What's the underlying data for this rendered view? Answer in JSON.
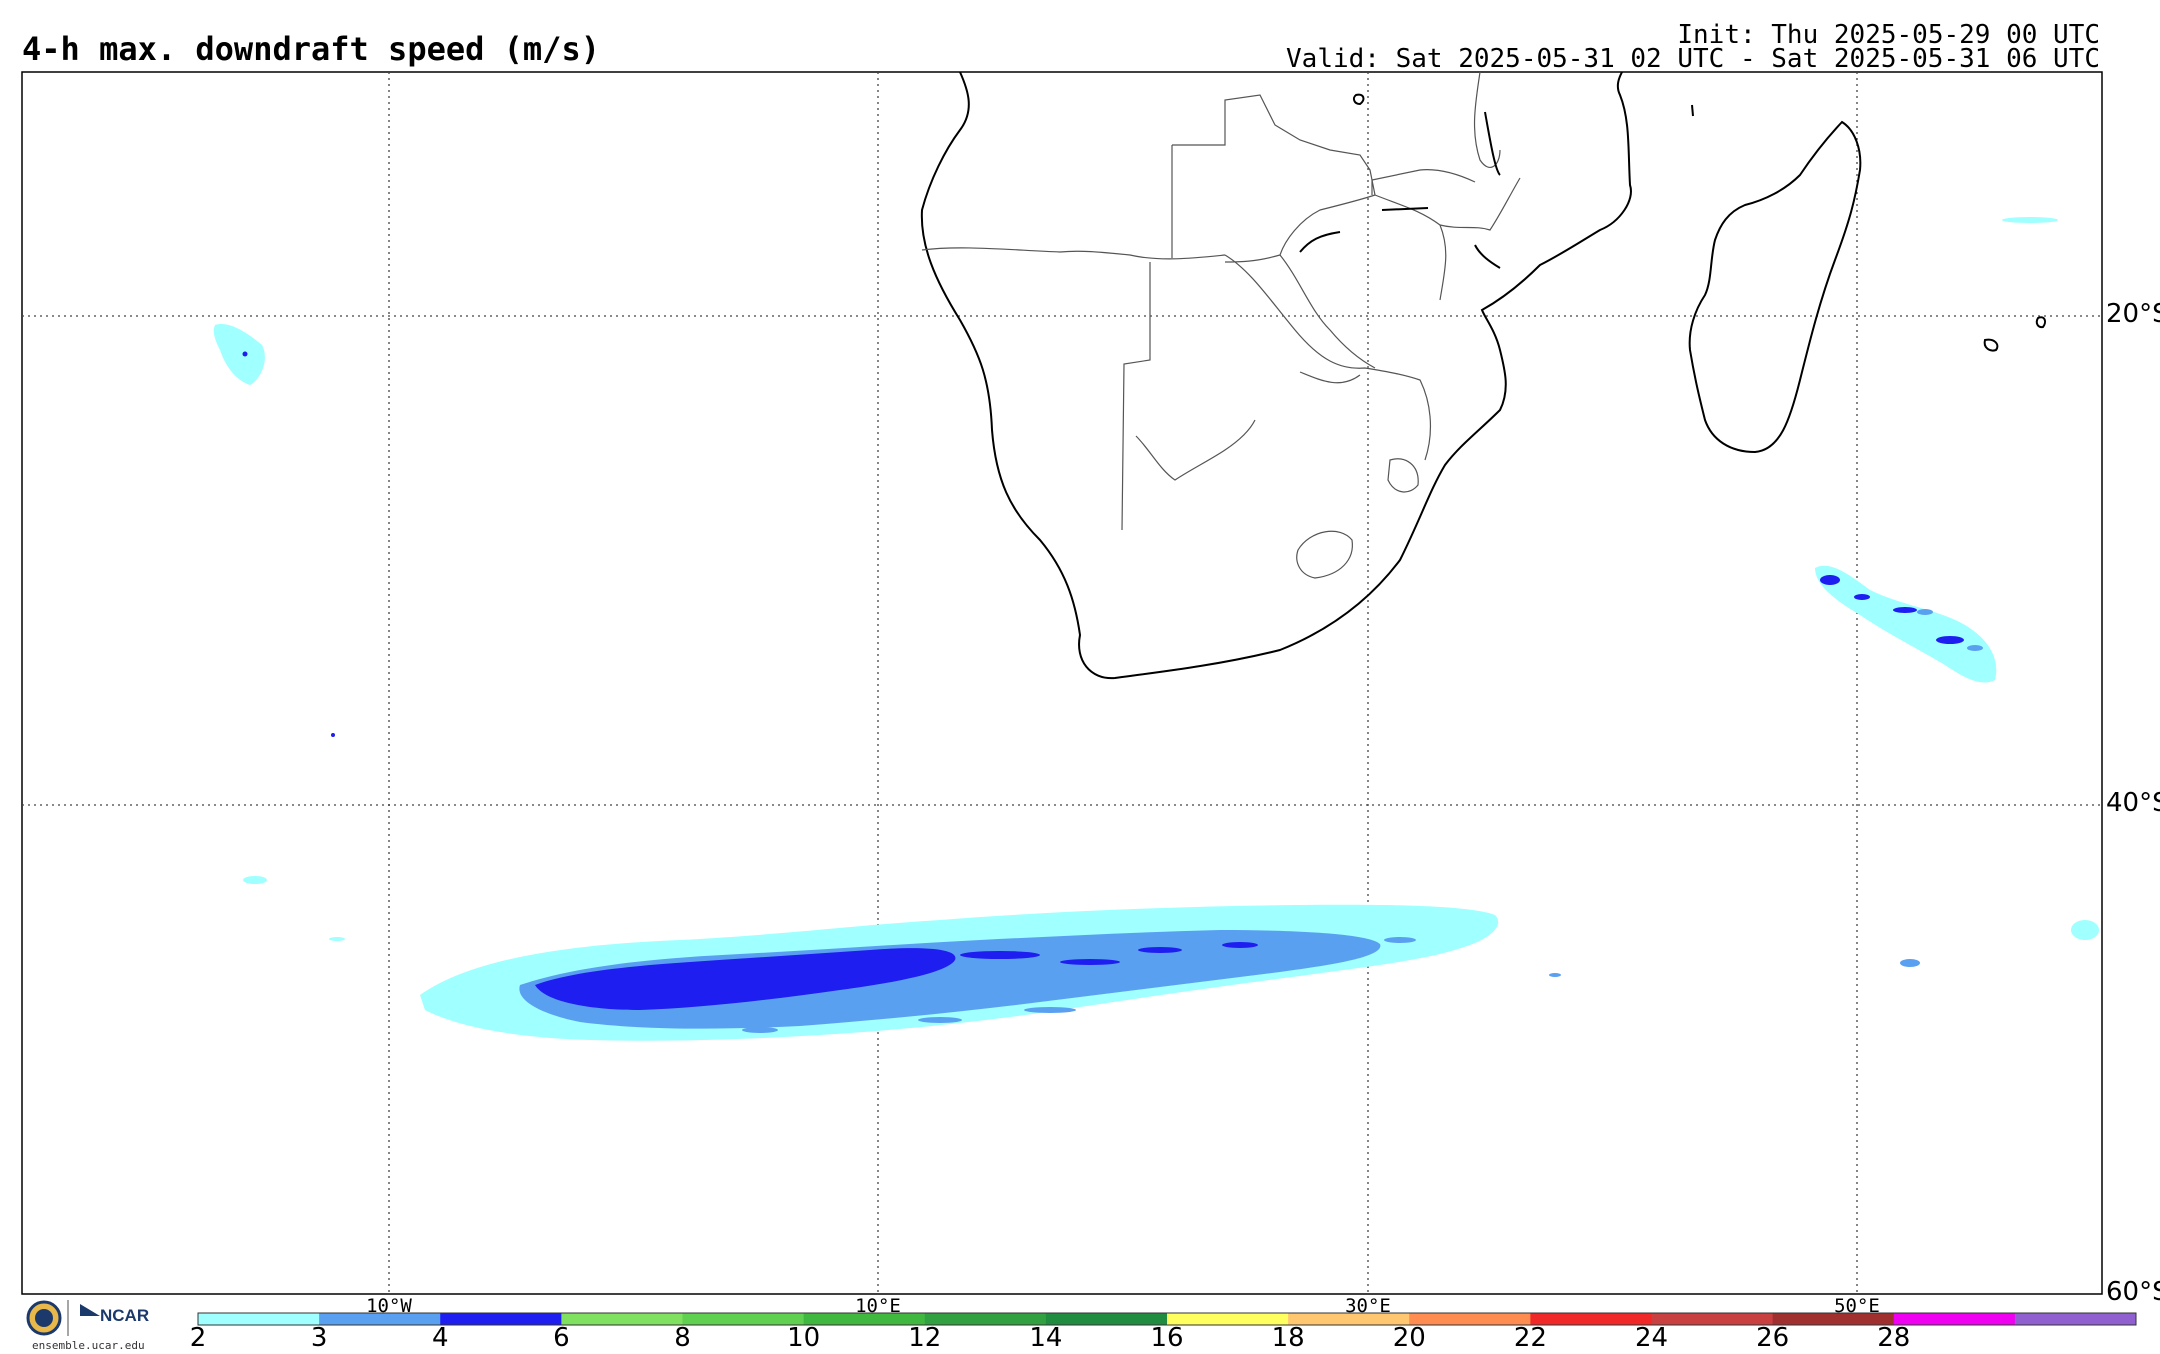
{
  "header": {
    "title": "4-h max. downdraft speed (m/s)",
    "init": "Init: Thu 2025-05-29 00 UTC",
    "valid": "Valid: Sat 2025-05-31 02 UTC - Sat 2025-05-31 06 UTC"
  },
  "map": {
    "lon_range": [
      -25,
      60
    ],
    "lat_range": [
      -60,
      -10
    ],
    "lat_grid": [
      -20,
      -40
    ],
    "lon_grid": [
      -10,
      10,
      30,
      50
    ],
    "lat_labels": [
      "20°S",
      "40°S",
      "60°S"
    ],
    "lon_labels": [
      "10°W",
      "10°E",
      "30°E",
      "50°E"
    ]
  },
  "colorbar": {
    "labels": [
      "2",
      "3",
      "4",
      "6",
      "8",
      "10",
      "12",
      "14",
      "16",
      "18",
      "20",
      "22",
      "24",
      "26",
      "28"
    ],
    "colors": [
      "#a0ffff",
      "#5aa0f0",
      "#1e1ef0",
      "#80e060",
      "#60d050",
      "#40b840",
      "#30a040",
      "#208c40",
      "#ffff60",
      "#ffc870",
      "#ff8c50",
      "#f02828",
      "#c84040",
      "#a03030",
      "#f000f0",
      "#9060d0"
    ]
  },
  "footer": {
    "logo": "NCAR",
    "url": "ensemble.ucar.edu"
  }
}
